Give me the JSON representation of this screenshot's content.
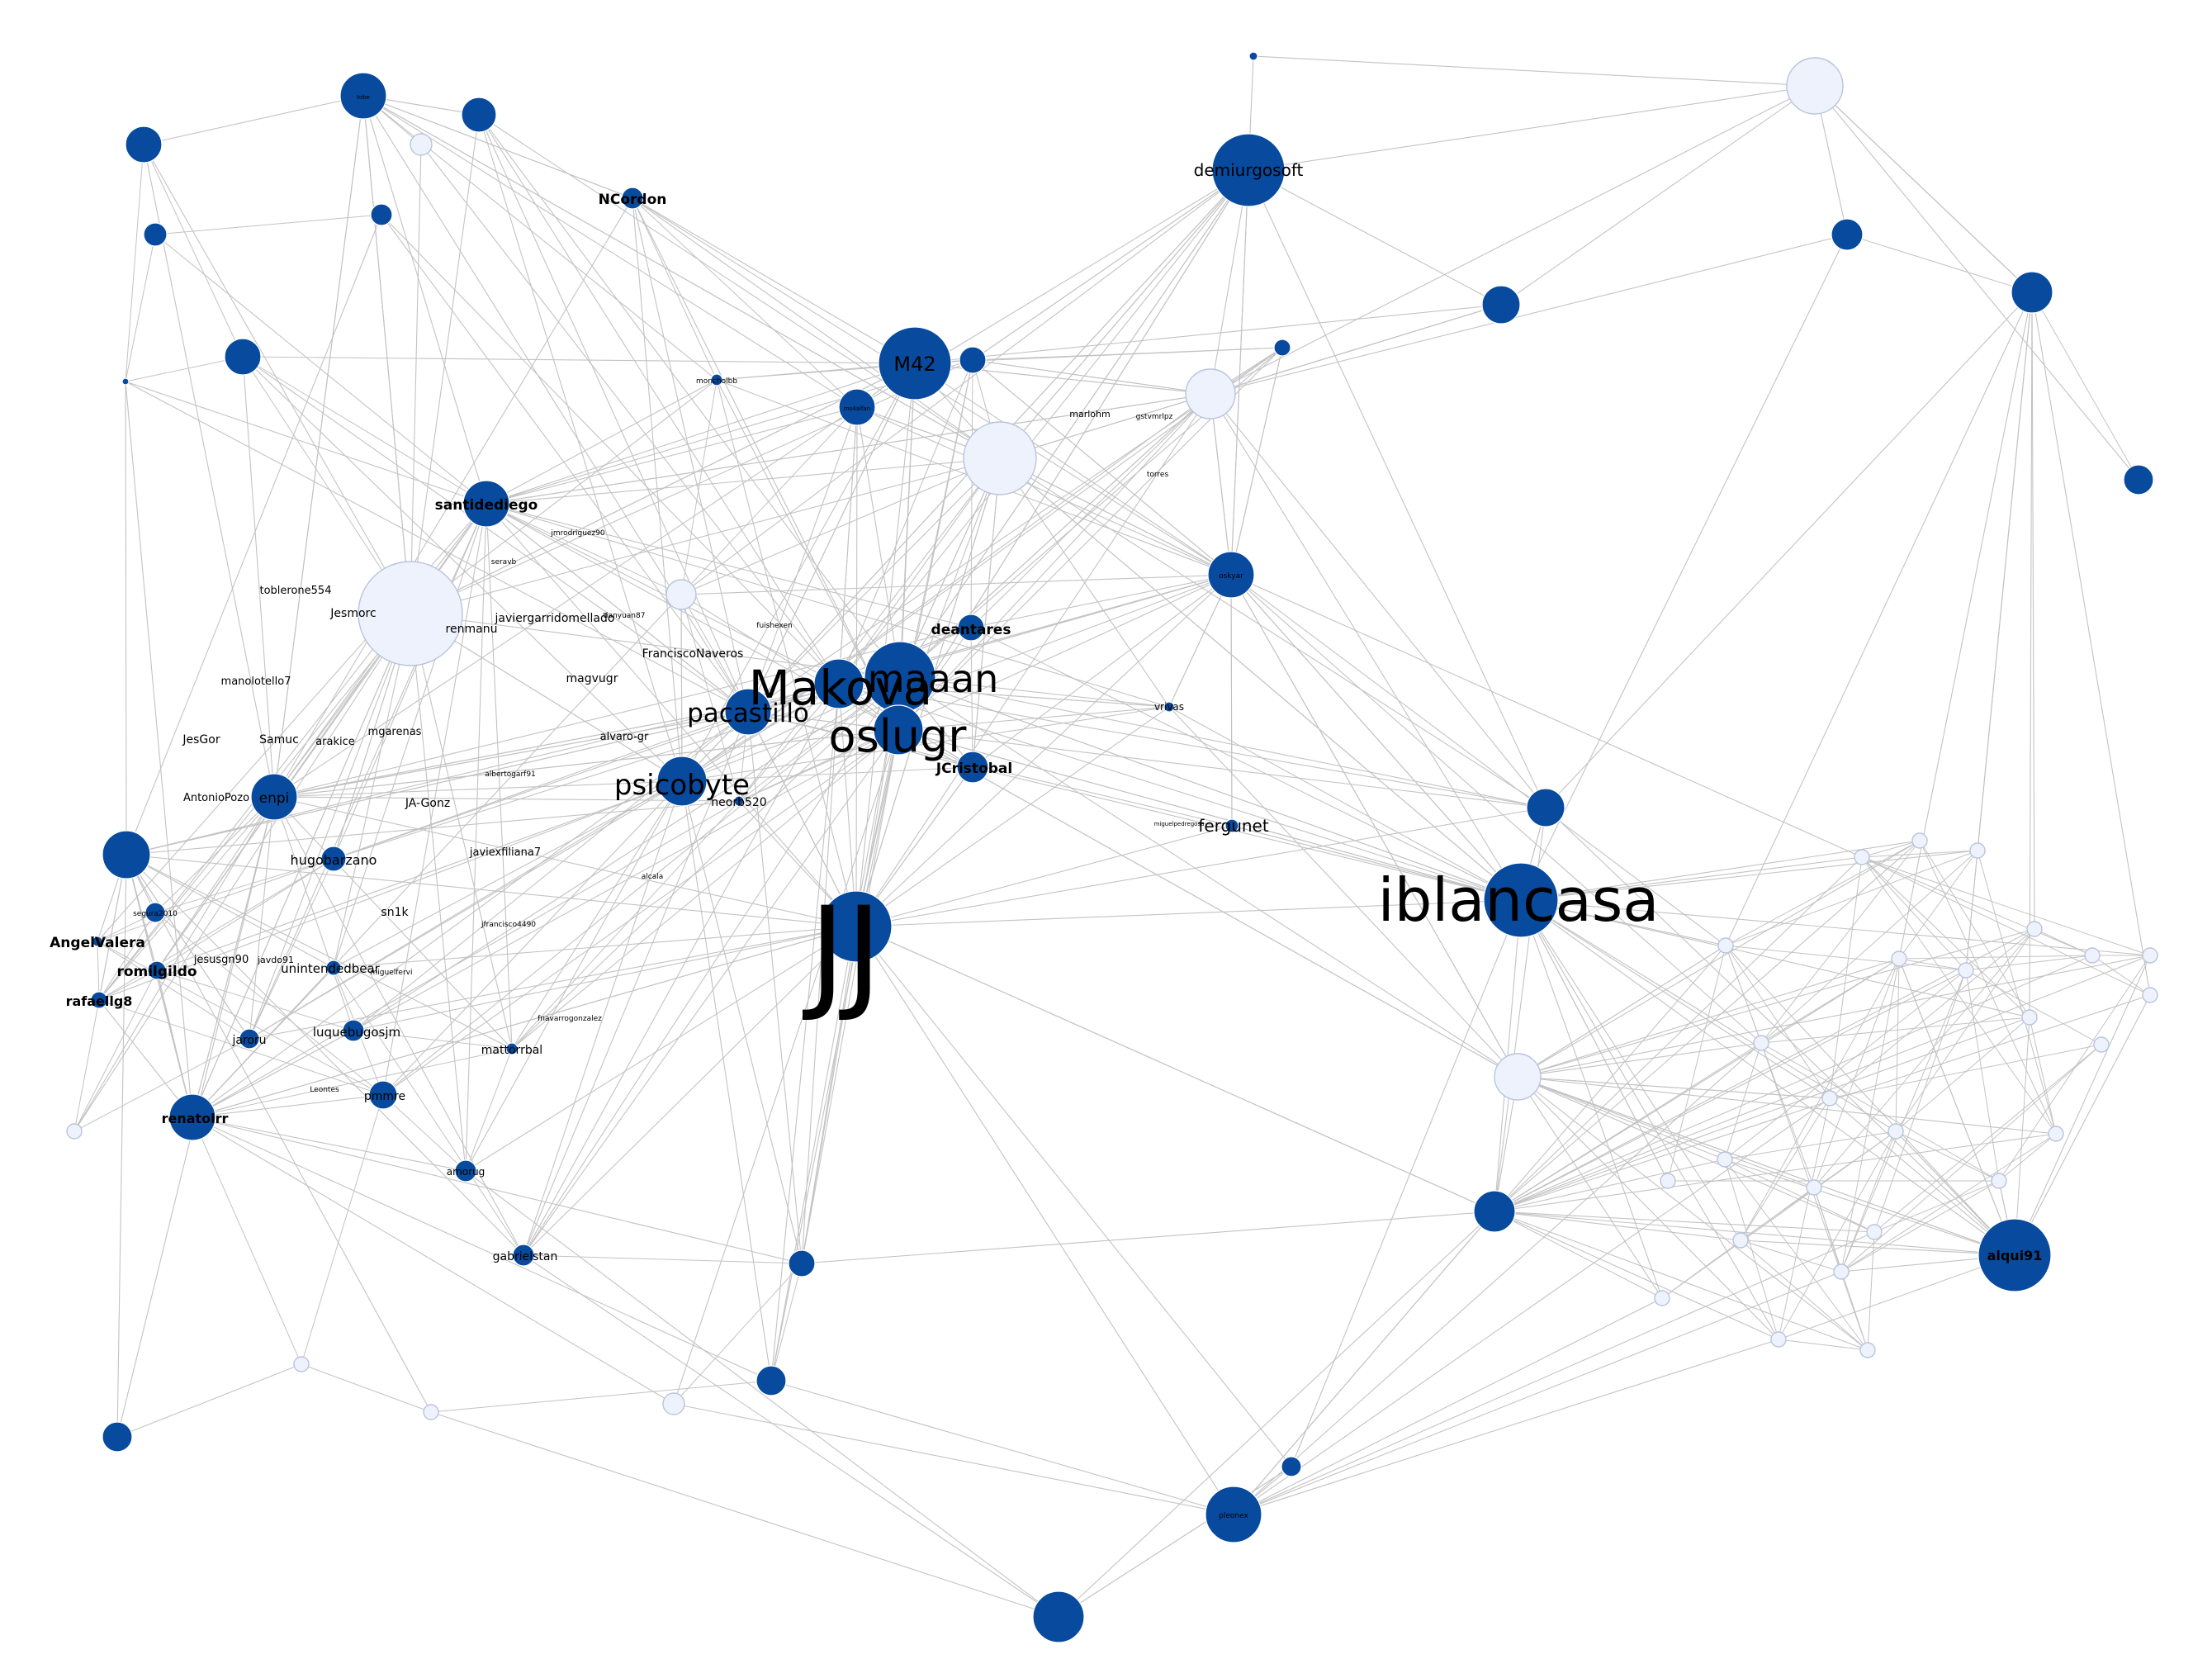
{
  "colors": {
    "background": "#ffffff",
    "edge": "#c3c3c3",
    "node_strong": "#074a9e",
    "node_light": "#eef2fc",
    "node_light_stroke": "#b9c4dc",
    "label": "#000000"
  },
  "nodes": [
    {
      "id": "jj",
      "label": "JJ",
      "kind": "strong"
    },
    {
      "id": "iblancasa",
      "label": "iblancasa",
      "kind": "strong"
    },
    {
      "id": "makova",
      "label": "Makova",
      "kind": "strong"
    },
    {
      "id": "maaan",
      "label": "maaan",
      "kind": "strong"
    },
    {
      "id": "oslugr",
      "label": "oslugr",
      "kind": "strong"
    },
    {
      "id": "psicobyte",
      "label": "psicobyte",
      "kind": "strong"
    },
    {
      "id": "pacastillo",
      "label": "pacastillo",
      "kind": "strong"
    },
    {
      "id": "m42",
      "label": "M42",
      "kind": "strong"
    },
    {
      "id": "demiurgosoft",
      "label": "demiurgosoft",
      "kind": "strong"
    },
    {
      "id": "santidediego",
      "label": "santidediego",
      "kind": "strong"
    },
    {
      "id": "ncordon",
      "label": "NCordon",
      "kind": "strong"
    },
    {
      "id": "fergunet",
      "label": "fergunet",
      "kind": "strong"
    },
    {
      "id": "deantares",
      "label": "deantares",
      "kind": "strong"
    },
    {
      "id": "jcristobal",
      "label": "JCristobal",
      "kind": "strong"
    },
    {
      "id": "alqui91",
      "label": "alqui91",
      "kind": "strong"
    },
    {
      "id": "enpi",
      "label": "enpi",
      "kind": "strong"
    },
    {
      "id": "angelvalera",
      "label": "AngelValera",
      "kind": "strong"
    },
    {
      "id": "romilgildo",
      "label": "romilgildo",
      "kind": "strong"
    },
    {
      "id": "rafaellg8",
      "label": "rafaellg8",
      "kind": "strong"
    },
    {
      "id": "renatolrr",
      "label": "renatolrr",
      "kind": "strong"
    },
    {
      "id": "hugobarzano",
      "label": "hugobarzano",
      "kind": "strong"
    },
    {
      "id": "luquebugosjm",
      "label": "luquebugosjm",
      "kind": "strong"
    },
    {
      "id": "mattorrbal",
      "label": "mattorrbal",
      "kind": "strong"
    },
    {
      "id": "jaroru",
      "label": "jaroru",
      "kind": "strong"
    },
    {
      "id": "pmmre",
      "label": "pmmre",
      "kind": "strong"
    },
    {
      "id": "amorug",
      "label": "amorug",
      "kind": "strong"
    },
    {
      "id": "gabrielstan",
      "label": "gabrielstan",
      "kind": "strong"
    },
    {
      "id": "unintendedbear",
      "label": "unintendedbear",
      "kind": "strong"
    },
    {
      "id": "neorb520",
      "label": "neorb520",
      "kind": "strong"
    },
    {
      "id": "vrivas",
      "label": "vrivas",
      "kind": "strong"
    },
    {
      "id": "oskyar",
      "label": "oskyar",
      "kind": "strong"
    },
    {
      "id": "pleonex",
      "label": "pleonex",
      "kind": "strong"
    },
    {
      "id": "segura2010",
      "label": "segura2010",
      "kind": "strong"
    },
    {
      "id": "moncholbb",
      "label": "moncholbb",
      "kind": "strong"
    },
    {
      "id": "ms4alfan",
      "label": "ms4alfan",
      "kind": "strong"
    },
    {
      "id": "tobe",
      "label": "tobe",
      "kind": "strong"
    },
    {
      "id": "javdo91",
      "label": "javdo91",
      "kind": "strong"
    },
    {
      "id": "jesmorc",
      "label": "Jesmorc",
      "kind": "light"
    },
    {
      "id": "l1",
      "label": "",
      "kind": "light"
    },
    {
      "id": "l2",
      "label": "",
      "kind": "light"
    },
    {
      "id": "l3",
      "label": "",
      "kind": "light"
    },
    {
      "id": "l4",
      "label": "",
      "kind": "light"
    },
    {
      "id": "l5",
      "label": "",
      "kind": "light"
    }
  ],
  "labels": {
    "toblerone554": "toblerone554",
    "javiergarridomellado": "javiergarridomellado",
    "renmanu": "renmanu",
    "francisconaveros": "FranciscoNaveros",
    "manolotello7": "manolotello7",
    "magvugr": "magvugr",
    "jesgor": "JesGor",
    "samuc": "Samuc",
    "arakice": "arakice",
    "mgarenas": "mgarenas",
    "alvaro_gr": "alvaro-gr",
    "antoniopozo": "AntonioPozo",
    "ja_gonz": "JA-Gonz",
    "javiexfiliana7": "javiexfiliana7",
    "sn1k": "sn1k",
    "jesusgn90": "jesusgn90",
    "miguelfervi": "miguelfervi",
    "leontes": "Leontes",
    "marlohm": "marlohm",
    "gstvmrlpz": "gstvmrlpz",
    "torres": "torres",
    "jmrodriguez90": "jmrodriguez90",
    "tianyuan87": "tianyuan87",
    "fuishexen": "fuishexen",
    "albertogarf91": "albertogarf91",
    "alcala": "alcala",
    "fnavarrogonzalez": "fnavarrogonzalez",
    "jfrancisco4490": "jfrancisco4490",
    "seravb": "seravb",
    "miguelpedregosa": "miguelpedregosa"
  }
}
